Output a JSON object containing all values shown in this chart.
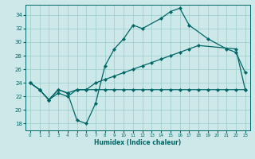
{
  "xlabel": "Humidex (Indice chaleur)",
  "background_color": "#cce8e8",
  "grid_color": "#99cccc",
  "line_color": "#006666",
  "xlim": [
    -0.5,
    23.5
  ],
  "ylim": [
    17.0,
    35.5
  ],
  "yticks": [
    18,
    20,
    22,
    24,
    26,
    28,
    30,
    32,
    34
  ],
  "xticks": [
    0,
    1,
    2,
    3,
    4,
    5,
    6,
    7,
    8,
    9,
    10,
    11,
    12,
    13,
    14,
    15,
    16,
    17,
    18,
    19,
    20,
    21,
    22,
    23
  ],
  "line1_x": [
    0,
    1,
    2,
    3,
    4,
    5,
    6,
    7,
    8,
    9,
    10,
    11,
    12,
    14,
    15,
    16,
    17,
    19,
    21,
    22,
    23
  ],
  "line1_y": [
    24.0,
    23.0,
    21.5,
    23.0,
    22.5,
    18.5,
    18.0,
    21.0,
    26.5,
    29.0,
    30.5,
    32.5,
    32.0,
    33.5,
    34.5,
    35.0,
    32.5,
    30.5,
    29.0,
    28.5,
    25.5
  ],
  "line2_x": [
    0,
    1,
    2,
    3,
    4,
    5,
    6,
    7,
    8,
    9,
    10,
    11,
    12,
    13,
    14,
    15,
    16,
    17,
    18,
    22,
    23
  ],
  "line2_y": [
    24.0,
    23.0,
    21.5,
    23.0,
    22.5,
    23.0,
    23.0,
    24.0,
    24.5,
    25.0,
    25.5,
    26.0,
    26.5,
    27.0,
    27.5,
    28.0,
    28.5,
    29.0,
    29.5,
    29.0,
    23.0
  ],
  "line3_x": [
    0,
    1,
    2,
    3,
    4,
    5,
    6,
    7,
    8,
    9,
    10,
    11,
    12,
    13,
    14,
    15,
    16,
    17,
    18,
    19,
    20,
    21,
    22,
    23
  ],
  "line3_y": [
    24.0,
    23.0,
    21.5,
    22.5,
    22.0,
    23.0,
    23.0,
    23.0,
    23.0,
    23.0,
    23.0,
    23.0,
    23.0,
    23.0,
    23.0,
    23.0,
    23.0,
    23.0,
    23.0,
    23.0,
    23.0,
    23.0,
    23.0,
    23.0
  ]
}
